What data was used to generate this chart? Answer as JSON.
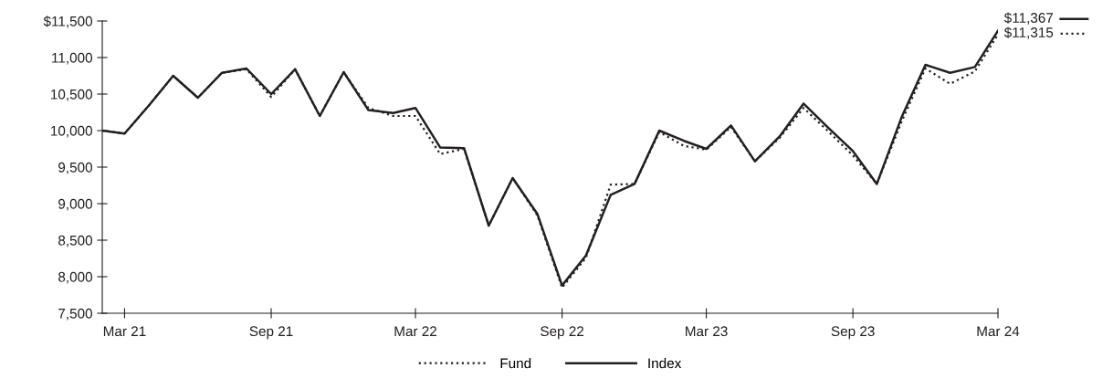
{
  "chart_data": {
    "type": "line",
    "x": [
      "2021-02",
      "2021-03",
      "2021-04",
      "2021-05",
      "2021-06",
      "2021-07",
      "2021-08",
      "2021-09",
      "2021-10",
      "2021-11",
      "2021-12",
      "2022-01",
      "2022-02",
      "2022-03",
      "2022-04",
      "2022-05",
      "2022-06",
      "2022-07",
      "2022-08",
      "2022-09",
      "2022-10",
      "2022-11",
      "2022-12",
      "2023-01",
      "2023-02",
      "2023-03",
      "2023-04",
      "2023-05",
      "2023-06",
      "2023-07",
      "2023-08",
      "2023-09",
      "2023-10",
      "2023-11",
      "2023-12",
      "2024-01",
      "2024-02",
      "2024-03"
    ],
    "series": [
      {
        "name": "Fund",
        "color": "#231f20",
        "line_style": "dotted",
        "values": [
          10000,
          9960,
          10350,
          10750,
          10450,
          10790,
          10840,
          10460,
          10840,
          10200,
          10800,
          10310,
          10200,
          10200,
          9680,
          9750,
          8700,
          9350,
          8840,
          7850,
          8260,
          9260,
          9270,
          9980,
          9790,
          9740,
          10050,
          9580,
          9900,
          10310,
          9990,
          9660,
          9270,
          10120,
          10850,
          10640,
          10810,
          11315
        ],
        "value_labels": [
          null,
          null,
          null,
          null,
          null,
          null,
          null,
          null,
          null,
          null,
          null,
          null,
          null,
          null,
          null,
          null,
          null,
          null,
          null,
          null,
          null,
          null,
          null,
          null,
          null,
          null,
          null,
          null,
          null,
          null,
          null,
          null,
          null,
          null,
          null,
          null,
          null,
          "$11,315"
        ]
      },
      {
        "name": "Index",
        "color": "#231f20",
        "line_style": "solid",
        "values": [
          10000,
          9960,
          10350,
          10750,
          10450,
          10790,
          10850,
          10500,
          10840,
          10200,
          10800,
          10280,
          10240,
          10310,
          9770,
          9760,
          8700,
          9350,
          8860,
          7880,
          8290,
          9120,
          9270,
          10000,
          9860,
          9750,
          10070,
          9580,
          9920,
          10370,
          10040,
          9720,
          9270,
          10180,
          10900,
          10790,
          10870,
          11367
        ],
        "value_labels": [
          null,
          null,
          null,
          null,
          null,
          null,
          null,
          null,
          null,
          null,
          null,
          null,
          null,
          null,
          null,
          null,
          null,
          null,
          null,
          null,
          null,
          null,
          null,
          null,
          null,
          null,
          null,
          null,
          null,
          null,
          null,
          null,
          null,
          null,
          null,
          null,
          null,
          "$11,367"
        ]
      }
    ],
    "xlim": [
      "2021-02",
      "2024-03"
    ],
    "xticks": [
      {
        "value": "2021-03",
        "label": "Mar 21"
      },
      {
        "value": "2021-09",
        "label": "Sep 21"
      },
      {
        "value": "2022-03",
        "label": "Mar 22"
      },
      {
        "value": "2022-09",
        "label": "Sep 22"
      },
      {
        "value": "2023-03",
        "label": "Mar 23"
      },
      {
        "value": "2023-09",
        "label": "Sep 23"
      },
      {
        "value": "2024-03",
        "label": "Mar 24"
      }
    ],
    "ylim": [
      7500,
      11500
    ],
    "yticks": [
      {
        "value": 7500,
        "label": "7,500"
      },
      {
        "value": 8000,
        "label": "8,000"
      },
      {
        "value": 8500,
        "label": "8,500"
      },
      {
        "value": 9000,
        "label": "9,000"
      },
      {
        "value": 9500,
        "label": "9,500"
      },
      {
        "value": 10000,
        "label": "10,000"
      },
      {
        "value": 10500,
        "label": "10,500"
      },
      {
        "value": 11000,
        "label": "11,000"
      },
      {
        "value": 11500,
        "label": "$11,500"
      }
    ],
    "grid": false,
    "legend": "bottom",
    "marker": "none"
  }
}
